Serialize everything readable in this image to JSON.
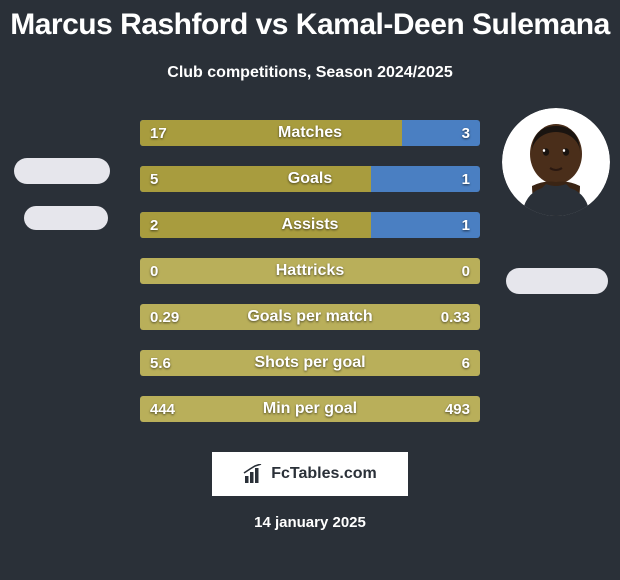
{
  "title": "Marcus Rashford vs Kamal-Deen Sulemana",
  "subtitle": "Club competitions, Season 2024/2025",
  "date": "14 january 2025",
  "brand": "FcTables.com",
  "colors": {
    "background": "#2a3038",
    "olive": "#a89c3e",
    "olive_light": "#b9af5a",
    "blue": "#4a7fc2",
    "chip": "#e6e6ec",
    "white": "#ffffff"
  },
  "player_right_avatar": {
    "skin": "#4a2e1a",
    "bg": "#ffffff"
  },
  "rows": [
    {
      "label": "Matches",
      "left": "17",
      "right": "3",
      "left_pct": 77,
      "right_pct": 23,
      "fill": "olive"
    },
    {
      "label": "Goals",
      "left": "5",
      "right": "1",
      "left_pct": 68,
      "right_pct": 32,
      "fill": "olive"
    },
    {
      "label": "Assists",
      "left": "2",
      "right": "1",
      "left_pct": 68,
      "right_pct": 32,
      "fill": "olive"
    },
    {
      "label": "Hattricks",
      "left": "0",
      "right": "0",
      "left_pct": 0,
      "right_pct": 0,
      "fill": "none"
    },
    {
      "label": "Goals per match",
      "left": "0.29",
      "right": "0.33",
      "left_pct": 0,
      "right_pct": 0,
      "fill": "none"
    },
    {
      "label": "Shots per goal",
      "left": "5.6",
      "right": "6",
      "left_pct": 0,
      "right_pct": 0,
      "fill": "none"
    },
    {
      "label": "Min per goal",
      "left": "444",
      "right": "493",
      "left_pct": 0,
      "right_pct": 0,
      "fill": "none"
    }
  ]
}
